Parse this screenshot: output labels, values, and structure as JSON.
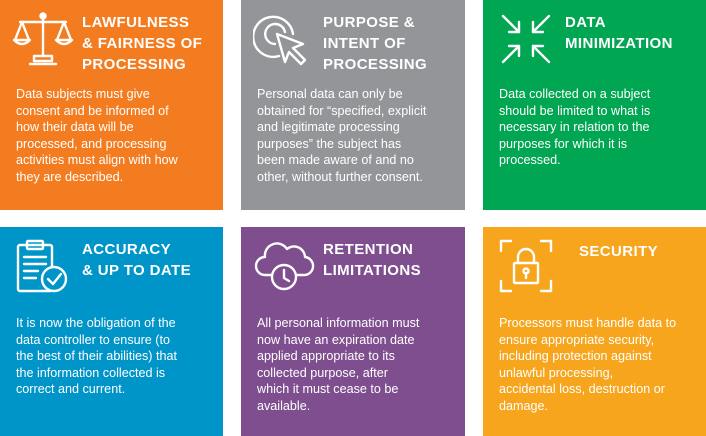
{
  "cards": [
    {
      "title": "Lawfulness\n& Fairness of\nProcessing",
      "body": "Data subjects must give\nconsent and be informed of\nhow their data will be\nprocessed, and processing\nactivities must align with how\nthey are described.",
      "color": "#f47c20",
      "icon": "scales-icon"
    },
    {
      "title": "Purpose &\nIntent of\nProcessing",
      "body": "Personal data can only be\nobtained for “specified, explicit\nand legitimate processing\npurposes” the subject has\nbeen made aware of and no\nother, without further consent.",
      "color": "#939598",
      "icon": "cursor-target-icon"
    },
    {
      "title": "Data\nMinimization",
      "body": "Data collected on a subject\nshould be limited to what is\nnecessary in relation to the\npurposes for which it is\nprocessed.",
      "color": "#00a651",
      "icon": "compress-arrows-icon"
    },
    {
      "title": "Accuracy\n& Up to Date",
      "body": "It is now the obligation of the\ndata controller to ensure (to\nthe best of their abilities) that\nthe information collected is\ncorrect and current.",
      "color": "#0095c8",
      "icon": "clipboard-check-icon"
    },
    {
      "title": "Retention\nLimitations",
      "body": "All personal information must\nnow have an expiration date\napplied appropriate to its\ncollected purpose, after\nwhich it must cease to be\navailable.",
      "color": "#7f4e8f",
      "icon": "cloud-clock-icon"
    },
    {
      "title": "Security",
      "body": "Processors must handle data to\nensure appropriate security,\nincluding protection against\nunlawful processing,\naccidental loss, destruction or\ndamage.",
      "color": "#f6a51c",
      "icon": "lock-icon"
    }
  ]
}
